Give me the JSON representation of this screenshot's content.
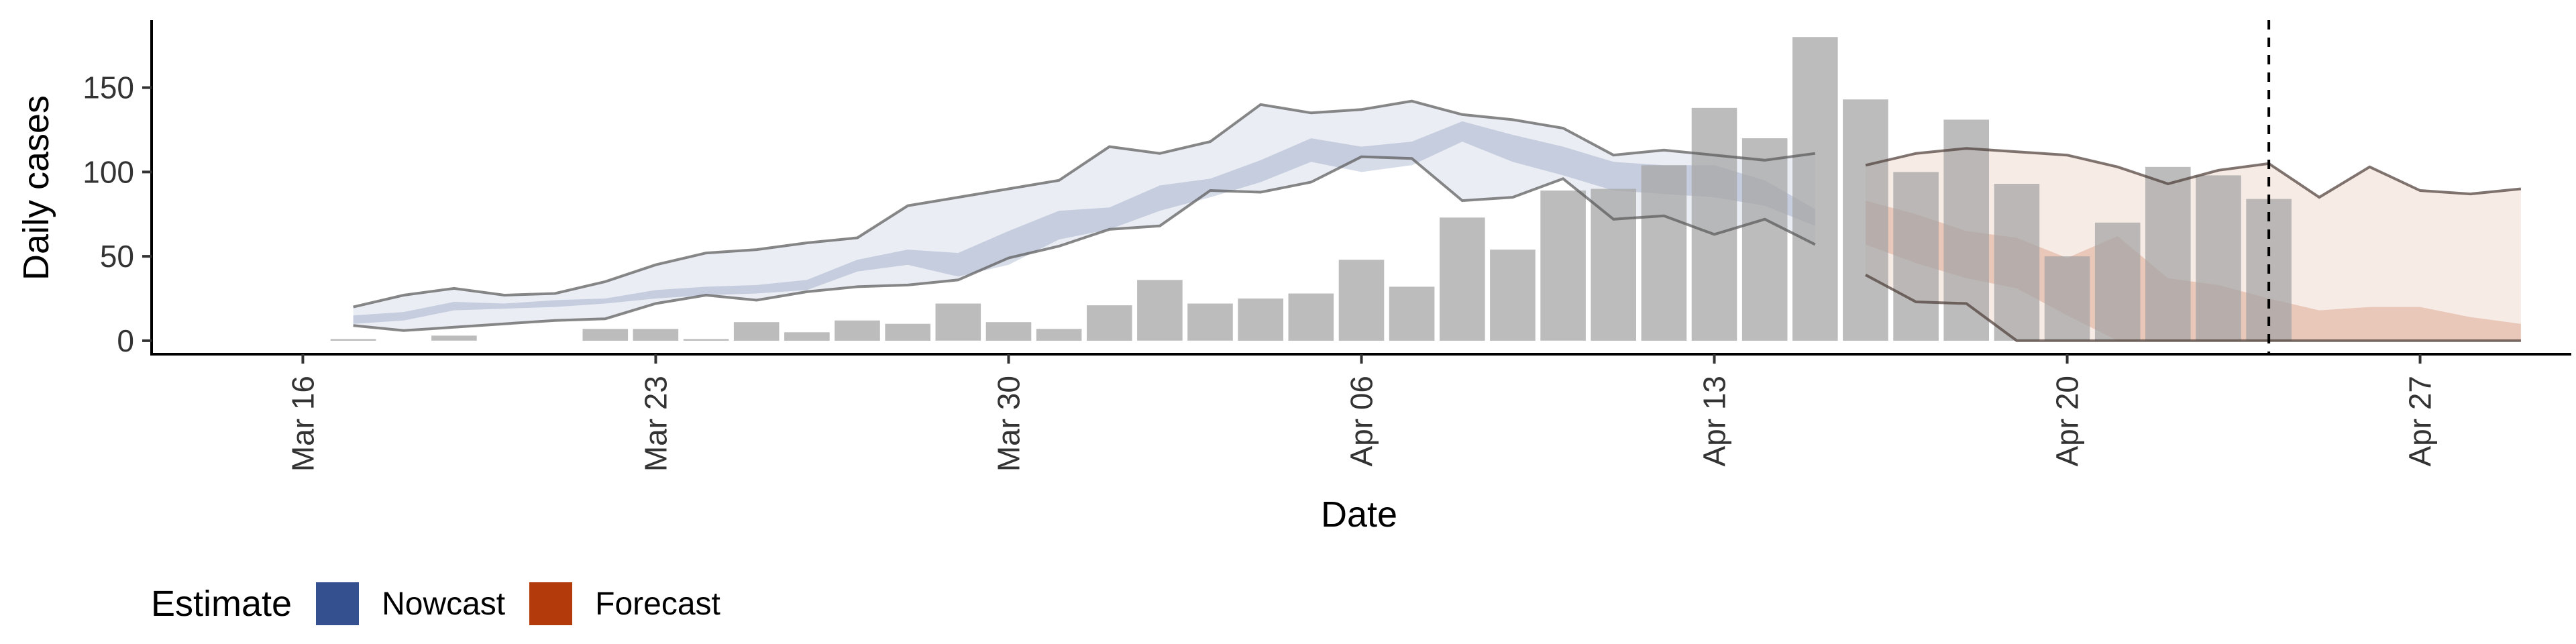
{
  "chart_data": {
    "type": "bar",
    "xlabel": "Date",
    "ylabel": "Daily cases",
    "ylim": [
      -8,
      190
    ],
    "xlim": [
      "2020-03-13",
      "2020-04-30"
    ],
    "x_ticks": [
      "Mar 16",
      "Mar 23",
      "Mar 30",
      "Apr 06",
      "Apr 13",
      "Apr 20",
      "Apr 27"
    ],
    "x_tick_dates": [
      "2020-03-16",
      "2020-03-23",
      "2020-03-30",
      "2020-04-06",
      "2020-04-13",
      "2020-04-20",
      "2020-04-27"
    ],
    "y_ticks": [
      0,
      50,
      100,
      150
    ],
    "grid": false,
    "dashed_vline_date": "2020-04-24",
    "reported_cases": {
      "dates": [
        "2020-03-17",
        "2020-03-18",
        "2020-03-19",
        "2020-03-20",
        "2020-03-21",
        "2020-03-22",
        "2020-03-23",
        "2020-03-24",
        "2020-03-25",
        "2020-03-26",
        "2020-03-27",
        "2020-03-28",
        "2020-03-29",
        "2020-03-30",
        "2020-03-31",
        "2020-04-01",
        "2020-04-02",
        "2020-04-03",
        "2020-04-04",
        "2020-04-05",
        "2020-04-06",
        "2020-04-07",
        "2020-04-08",
        "2020-04-09",
        "2020-04-10",
        "2020-04-11",
        "2020-04-12",
        "2020-04-13",
        "2020-04-14",
        "2020-04-15",
        "2020-04-16",
        "2020-04-17",
        "2020-04-18",
        "2020-04-19",
        "2020-04-20",
        "2020-04-21",
        "2020-04-22",
        "2020-04-23",
        "2020-04-24"
      ],
      "values": [
        1,
        0,
        3,
        0,
        0,
        7,
        7,
        1,
        11,
        5,
        12,
        10,
        22,
        11,
        7,
        21,
        36,
        22,
        25,
        28,
        48,
        32,
        73,
        54,
        89,
        90,
        104,
        138,
        120,
        180,
        143,
        100,
        131,
        93,
        50,
        70,
        103,
        98,
        84
      ]
    },
    "series": [
      {
        "name": "Nowcast",
        "color": "#34508e",
        "dates": [
          "2020-03-17",
          "2020-03-18",
          "2020-03-19",
          "2020-03-20",
          "2020-03-21",
          "2020-03-22",
          "2020-03-23",
          "2020-03-24",
          "2020-03-25",
          "2020-03-26",
          "2020-03-27",
          "2020-03-28",
          "2020-03-29",
          "2020-03-30",
          "2020-03-31",
          "2020-04-01",
          "2020-04-02",
          "2020-04-03",
          "2020-04-04",
          "2020-04-05",
          "2020-04-06",
          "2020-04-07",
          "2020-04-08",
          "2020-04-09",
          "2020-04-10",
          "2020-04-11",
          "2020-04-12",
          "2020-04-13",
          "2020-04-14",
          "2020-04-15"
        ],
        "lower_90": [
          9,
          6,
          8,
          10,
          12,
          13,
          22,
          27,
          24,
          29,
          32,
          33,
          36,
          49,
          56,
          66,
          68,
          89,
          88,
          94,
          109,
          108,
          83,
          85,
          96,
          72,
          74,
          63,
          72,
          57
        ],
        "upper_90": [
          20,
          27,
          31,
          27,
          28,
          35,
          45,
          52,
          54,
          58,
          61,
          80,
          85,
          90,
          95,
          115,
          111,
          118,
          140,
          135,
          137,
          142,
          134,
          131,
          126,
          110,
          113,
          110,
          107,
          111
        ],
        "lower_50": [
          10,
          12,
          18,
          19,
          20,
          22,
          25,
          27,
          28,
          30,
          41,
          45,
          38,
          45,
          60,
          66,
          77,
          85,
          94,
          106,
          100,
          104,
          118,
          106,
          98,
          89,
          87,
          85,
          80,
          68
        ],
        "upper_50": [
          15,
          17,
          23,
          22,
          24,
          25,
          30,
          32,
          33,
          36,
          48,
          54,
          52,
          65,
          77,
          79,
          92,
          96,
          107,
          120,
          115,
          118,
          130,
          122,
          115,
          106,
          104,
          104,
          95,
          78
        ]
      },
      {
        "name": "Forecast",
        "color": "#b33a0a",
        "dates": [
          "2020-04-16",
          "2020-04-17",
          "2020-04-18",
          "2020-04-19",
          "2020-04-20",
          "2020-04-21",
          "2020-04-22",
          "2020-04-23",
          "2020-04-24",
          "2020-04-25",
          "2020-04-26",
          "2020-04-27",
          "2020-04-28",
          "2020-04-29"
        ],
        "lower_90": [
          39,
          23,
          22,
          0,
          0,
          0,
          0,
          0,
          0,
          0,
          0,
          0,
          0,
          0
        ],
        "upper_90": [
          104,
          111,
          114,
          112,
          110,
          103,
          93,
          101,
          105,
          85,
          103,
          89,
          87,
          90
        ],
        "lower_50": [
          57,
          46,
          37,
          31,
          15,
          0,
          0,
          0,
          0,
          0,
          0,
          0,
          0,
          0
        ],
        "upper_50": [
          83,
          75,
          65,
          61,
          49,
          62,
          37,
          33,
          25,
          18,
          20,
          20,
          14,
          10
        ]
      }
    ]
  },
  "legend": {
    "title": "Estimate",
    "items": [
      {
        "label": "Nowcast",
        "color": "#34508e"
      },
      {
        "label": "Forecast",
        "color": "#b33a0a"
      }
    ]
  }
}
